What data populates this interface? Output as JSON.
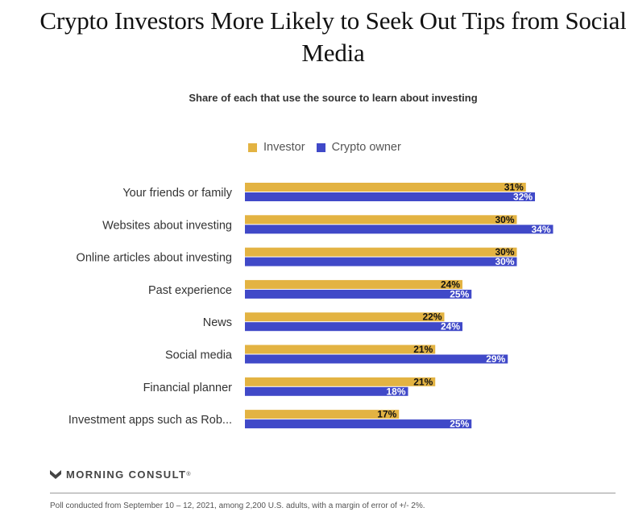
{
  "chart_data": {
    "type": "bar",
    "orientation": "horizontal",
    "title": "Crypto Investors More Likely to Seek Out Tips from Social Media",
    "subtitle": "Share of each that use the source to learn about investing",
    "categories": [
      "Your friends or family",
      "Websites about investing",
      "Online articles about investing",
      "Past experience",
      "News",
      "Social media",
      "Financial planner",
      "Investment apps such as Rob..."
    ],
    "series": [
      {
        "name": "Investor",
        "color": "#E3B342",
        "values": [
          31,
          30,
          30,
          24,
          22,
          21,
          21,
          17
        ]
      },
      {
        "name": "Crypto owner",
        "color": "#4049C8",
        "values": [
          32,
          34,
          30,
          25,
          24,
          29,
          18,
          25
        ]
      }
    ],
    "value_suffix": "%",
    "legend_position": "top",
    "grid": false
  },
  "branding": {
    "logo_text": "MORNING CONSULT",
    "trademark": "®"
  },
  "footnote": "Poll conducted from September 10 – 12, 2021, among 2,200 U.S. adults, with a margin of error of +/- 2%."
}
